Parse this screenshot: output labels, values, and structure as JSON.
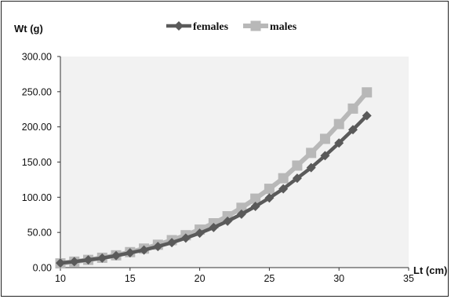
{
  "chart_data": {
    "type": "line",
    "title": "",
    "xlabel": "Lt (cm)",
    "ylabel": "Wt (g)",
    "xlim": [
      10,
      35
    ],
    "ylim": [
      0,
      300
    ],
    "x_ticks": [
      "10",
      "15",
      "20",
      "25",
      "30",
      "35"
    ],
    "y_ticks": [
      "0.00",
      "50.00",
      "100.00",
      "150.00",
      "200.00",
      "250.00",
      "300.00"
    ],
    "legend_position": "top-center",
    "grid": false,
    "x": [
      10,
      11,
      12,
      13,
      14,
      15,
      16,
      17,
      18,
      19,
      20,
      21,
      22,
      23,
      24,
      25,
      26,
      27,
      28,
      29,
      30,
      31,
      32
    ],
    "series": [
      {
        "name": "females",
        "color": "#5a5a5a",
        "marker": "diamond",
        "values": [
          6.5,
          8.5,
          11,
          13.5,
          17,
          21,
          25,
          30,
          35.5,
          42,
          49,
          57,
          66,
          76,
          87,
          99,
          112,
          127,
          142,
          159,
          177,
          196,
          216
        ]
      },
      {
        "name": "males",
        "color": "#b8b8b8",
        "marker": "square",
        "values": [
          6,
          8.5,
          11,
          14,
          17.5,
          22,
          27,
          32.5,
          39,
          46,
          54,
          63,
          73,
          85,
          98,
          112,
          127,
          145,
          163,
          183,
          204,
          226,
          249
        ]
      }
    ]
  }
}
